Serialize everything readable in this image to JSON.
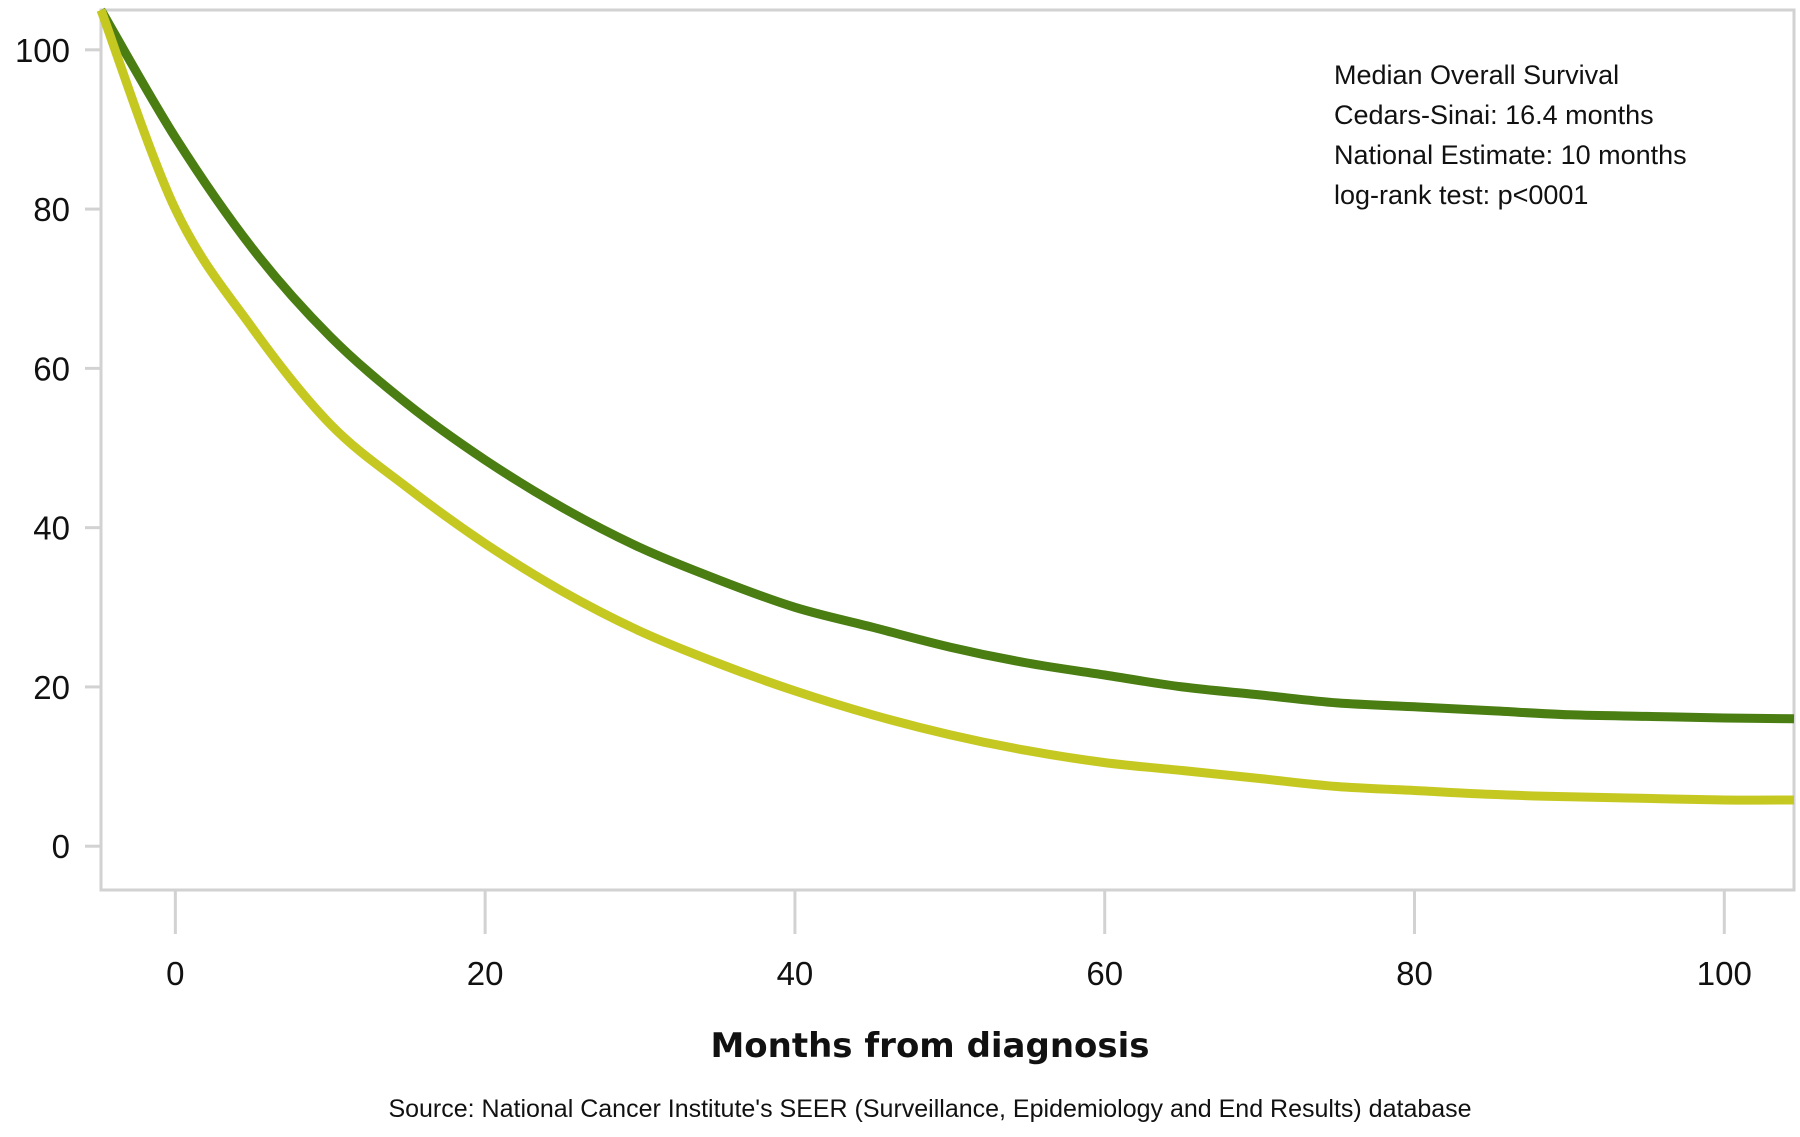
{
  "chart_data": {
    "type": "line",
    "title": "",
    "xlabel": "Months from diagnosis",
    "ylabel": "",
    "xlim": [
      -4.8,
      104.5
    ],
    "ylim": [
      -5.5,
      105
    ],
    "x_ticks": [
      0,
      20,
      40,
      60,
      80,
      100
    ],
    "y_ticks": [
      0,
      20,
      40,
      60,
      80,
      100
    ],
    "grid": false,
    "annotation": [
      "Median Overall Survival",
      "Cedars-Sinai: 16.4 months",
      "National Estimate: 10 months",
      "log-rank test: p<0001"
    ],
    "annotation_position": "top-right",
    "source": "Source: National Cancer Institute's SEER (Surveillance, Epidemiology and End Results) database",
    "series": [
      {
        "color": "#4a7d12",
        "x": [
          -4.8,
          0,
          5,
          10,
          15,
          20,
          25,
          30,
          35,
          40,
          45,
          50,
          55,
          60,
          65,
          70,
          75,
          80,
          85,
          90,
          95,
          100,
          104.5
        ],
        "y": [
          105,
          89,
          75,
          64,
          55.5,
          48.5,
          42.5,
          37.5,
          33.5,
          30,
          27.5,
          25,
          23,
          21.5,
          20,
          19,
          18,
          17.5,
          17,
          16.5,
          16.3,
          16.1,
          16
        ]
      },
      {
        "color": "#c6c822",
        "x": [
          -4.8,
          0,
          5,
          10,
          15,
          20,
          25,
          30,
          35,
          40,
          45,
          50,
          55,
          60,
          65,
          70,
          75,
          80,
          85,
          90,
          95,
          100,
          104.5
        ],
        "y": [
          105,
          80,
          65,
          53,
          45,
          38,
          32,
          27,
          23,
          19.5,
          16.5,
          14,
          12,
          10.5,
          9.5,
          8.5,
          7.5,
          7,
          6.5,
          6.2,
          6,
          5.8,
          5.8
        ]
      }
    ]
  }
}
